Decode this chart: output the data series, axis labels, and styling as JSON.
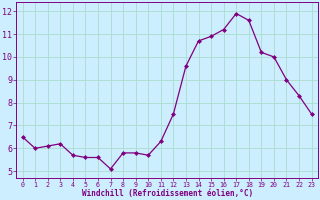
{
  "x": [
    0,
    1,
    2,
    3,
    4,
    5,
    6,
    7,
    8,
    9,
    10,
    11,
    12,
    13,
    14,
    15,
    16,
    17,
    18,
    19,
    20,
    21,
    22,
    23
  ],
  "y": [
    6.5,
    6.0,
    6.1,
    6.2,
    5.7,
    5.6,
    5.6,
    5.1,
    5.8,
    5.8,
    5.7,
    6.3,
    7.5,
    9.6,
    10.7,
    10.9,
    11.2,
    11.9,
    11.6,
    10.2,
    10.0,
    9.0,
    8.3,
    7.5
  ],
  "line_color": "#800080",
  "marker_color": "#800080",
  "bg_color": "#cceeff",
  "grid_color": "#aaddcc",
  "xlabel": "Windchill (Refroidissement éolien,°C)",
  "ylabel_ticks": [
    5,
    6,
    7,
    8,
    9,
    10,
    11,
    12
  ],
  "xlim": [
    -0.5,
    23.5
  ],
  "ylim": [
    4.7,
    12.4
  ],
  "font_color": "#800080",
  "tick_labels": [
    "0",
    "1",
    "2",
    "3",
    "4",
    "5",
    "6",
    "7",
    "8",
    "9",
    "10",
    "11",
    "12",
    "13",
    "14",
    "15",
    "16",
    "17",
    "18",
    "19",
    "20",
    "21",
    "22",
    "23"
  ],
  "xtick_fontsize": 4.8,
  "ytick_fontsize": 6.0,
  "xlabel_fontsize": 5.5,
  "linewidth": 0.9,
  "markersize": 2.0
}
